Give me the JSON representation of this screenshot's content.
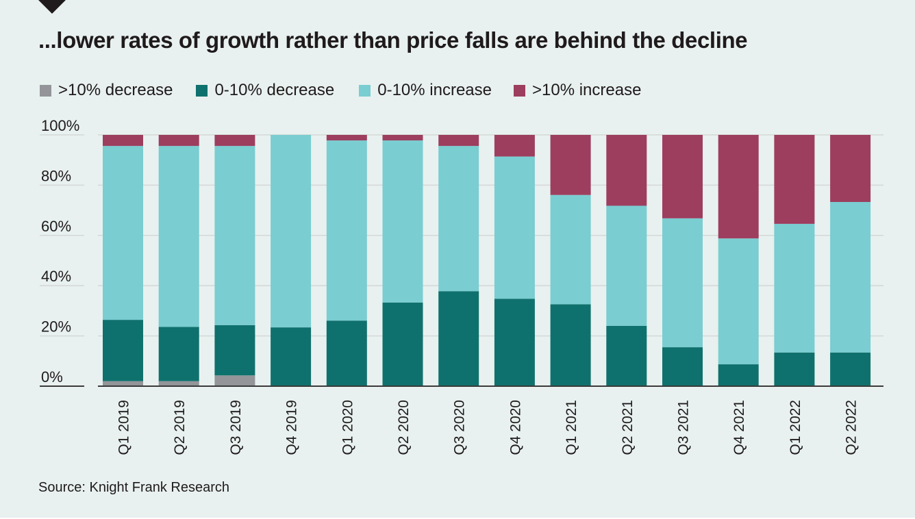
{
  "title": "...lower rates of growth rather than price falls are behind the decline",
  "source": "Source: Knight Frank Research",
  "legend": [
    {
      "label": ">10% decrease",
      "color": "#939598"
    },
    {
      "label": "0-10% decrease",
      "color": "#0f716d"
    },
    {
      "label": "0-10% increase",
      "color": "#7acdd1"
    },
    {
      "label": ">10% increase",
      "color": "#9d3e5f"
    }
  ],
  "chart_data": {
    "type": "bar",
    "stacked": true,
    "title": "...lower rates of growth rather than price falls are behind the decline",
    "xlabel": "",
    "ylabel": "",
    "ylim": [
      0,
      100
    ],
    "y_ticks": [
      "0%",
      "20%",
      "40%",
      "60%",
      "80%",
      "100%"
    ],
    "y_tick_values": [
      0,
      20,
      40,
      60,
      80,
      100
    ],
    "grid": true,
    "legend_position": "top-left",
    "categories": [
      "Q1 2019",
      "Q2 2019",
      "Q3 2019",
      "Q4 2019",
      "Q1 2020",
      "Q2 2020",
      "Q3 2020",
      "Q4 2020",
      "Q1 2021",
      "Q2 2021",
      "Q3 2021",
      "Q4 2021",
      "Q1 2022",
      "Q2 2022"
    ],
    "series": [
      {
        "name": ">10% decrease",
        "color": "#939598",
        "values": [
          2,
          2,
          4.3,
          0,
          0,
          0,
          0,
          0,
          0,
          0,
          0,
          0,
          0,
          0
        ]
      },
      {
        "name": "0-10% decrease",
        "color": "#0f716d",
        "values": [
          24.4,
          21.6,
          20,
          23.4,
          26.1,
          33.3,
          37.8,
          34.8,
          32.6,
          24,
          15.5,
          8.7,
          13.4,
          13.4
        ]
      },
      {
        "name": "0-10% increase",
        "color": "#7acdd1",
        "values": [
          69.2,
          72,
          71.3,
          76.6,
          71.7,
          64.5,
          57.8,
          56.6,
          43.5,
          47.8,
          51.3,
          50.1,
          51.2,
          59.9
        ]
      },
      {
        "name": ">10% increase",
        "color": "#9d3e5f",
        "values": [
          4.4,
          4.4,
          4.4,
          0,
          2.2,
          2.2,
          4.4,
          8.6,
          23.9,
          28.2,
          33.2,
          41.2,
          35.4,
          26.7
        ]
      }
    ],
    "source": "Source: Knight Frank Research"
  }
}
